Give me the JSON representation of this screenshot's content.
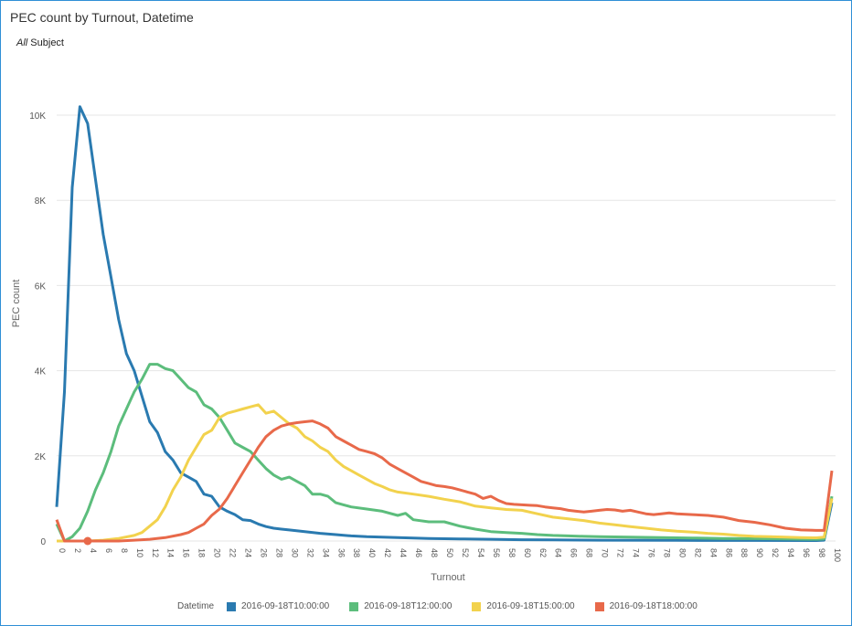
{
  "header": {
    "title": "PEC count by Turnout, Datetime",
    "subject_all": "All",
    "subject_label": "Subject"
  },
  "chart_data": {
    "type": "line",
    "xlabel": "Turnout",
    "ylabel": "PEC count",
    "xlim": [
      0,
      100
    ],
    "ylim": [
      0,
      10000
    ],
    "x_ticks": [
      0,
      2,
      4,
      6,
      8,
      10,
      12,
      14,
      16,
      18,
      20,
      22,
      24,
      26,
      28,
      30,
      32,
      34,
      36,
      38,
      40,
      42,
      44,
      46,
      48,
      50,
      52,
      54,
      56,
      58,
      60,
      62,
      64,
      66,
      68,
      70,
      72,
      74,
      76,
      78,
      80,
      82,
      84,
      86,
      88,
      90,
      92,
      94,
      96,
      98,
      100
    ],
    "y_ticks": [
      0,
      2000,
      4000,
      6000,
      8000,
      10000
    ],
    "y_tick_labels": [
      "0",
      "2K",
      "4K",
      "6K",
      "8K",
      "10K"
    ],
    "grid": "horizontal",
    "legend_title": "Datetime",
    "legend_position": "bottom",
    "series": [
      {
        "name": "2016-09-18T10:00:00",
        "color": "#2a7ab0",
        "points": [
          [
            0,
            800
          ],
          [
            1,
            3500
          ],
          [
            2,
            8300
          ],
          [
            3,
            10200
          ],
          [
            4,
            9800
          ],
          [
            5,
            8500
          ],
          [
            6,
            7200
          ],
          [
            7,
            6200
          ],
          [
            8,
            5200
          ],
          [
            9,
            4400
          ],
          [
            10,
            4000
          ],
          [
            11,
            3400
          ],
          [
            12,
            2800
          ],
          [
            13,
            2550
          ],
          [
            14,
            2100
          ],
          [
            15,
            1900
          ],
          [
            16,
            1600
          ],
          [
            17,
            1500
          ],
          [
            18,
            1400
          ],
          [
            19,
            1100
          ],
          [
            20,
            1050
          ],
          [
            21,
            800
          ],
          [
            22,
            700
          ],
          [
            23,
            620
          ],
          [
            24,
            500
          ],
          [
            25,
            480
          ],
          [
            26,
            400
          ],
          [
            27,
            340
          ],
          [
            28,
            300
          ],
          [
            29,
            280
          ],
          [
            30,
            260
          ],
          [
            32,
            220
          ],
          [
            34,
            180
          ],
          [
            36,
            150
          ],
          [
            38,
            120
          ],
          [
            40,
            100
          ],
          [
            44,
            80
          ],
          [
            48,
            60
          ],
          [
            52,
            50
          ],
          [
            56,
            40
          ],
          [
            60,
            30
          ],
          [
            64,
            25
          ],
          [
            70,
            20
          ],
          [
            80,
            15
          ],
          [
            90,
            12
          ],
          [
            98,
            10
          ],
          [
            99,
            20
          ],
          [
            100,
            900
          ]
        ]
      },
      {
        "name": "2016-09-18T12:00:00",
        "color": "#5cbd7c",
        "points": [
          [
            0,
            400
          ],
          [
            1,
            0
          ],
          [
            2,
            100
          ],
          [
            3,
            300
          ],
          [
            4,
            700
          ],
          [
            5,
            1200
          ],
          [
            6,
            1600
          ],
          [
            7,
            2100
          ],
          [
            8,
            2700
          ],
          [
            9,
            3100
          ],
          [
            10,
            3500
          ],
          [
            11,
            3800
          ],
          [
            12,
            4150
          ],
          [
            13,
            4150
          ],
          [
            14,
            4050
          ],
          [
            15,
            4000
          ],
          [
            16,
            3800
          ],
          [
            17,
            3600
          ],
          [
            18,
            3500
          ],
          [
            19,
            3200
          ],
          [
            20,
            3100
          ],
          [
            21,
            2900
          ],
          [
            22,
            2600
          ],
          [
            23,
            2300
          ],
          [
            24,
            2200
          ],
          [
            25,
            2100
          ],
          [
            26,
            1900
          ],
          [
            27,
            1700
          ],
          [
            28,
            1550
          ],
          [
            29,
            1450
          ],
          [
            30,
            1500
          ],
          [
            31,
            1400
          ],
          [
            32,
            1300
          ],
          [
            33,
            1100
          ],
          [
            34,
            1100
          ],
          [
            35,
            1050
          ],
          [
            36,
            900
          ],
          [
            37,
            850
          ],
          [
            38,
            800
          ],
          [
            40,
            750
          ],
          [
            42,
            700
          ],
          [
            44,
            600
          ],
          [
            45,
            650
          ],
          [
            46,
            500
          ],
          [
            48,
            450
          ],
          [
            50,
            450
          ],
          [
            52,
            350
          ],
          [
            54,
            280
          ],
          [
            56,
            220
          ],
          [
            58,
            200
          ],
          [
            60,
            180
          ],
          [
            62,
            150
          ],
          [
            64,
            130
          ],
          [
            66,
            120
          ],
          [
            68,
            110
          ],
          [
            70,
            100
          ],
          [
            74,
            90
          ],
          [
            78,
            80
          ],
          [
            82,
            70
          ],
          [
            86,
            60
          ],
          [
            90,
            55
          ],
          [
            94,
            50
          ],
          [
            98,
            40
          ],
          [
            99,
            50
          ],
          [
            100,
            1050
          ]
        ]
      },
      {
        "name": "2016-09-18T15:00:00",
        "color": "#f2d24d",
        "points": [
          [
            0,
            0
          ],
          [
            4,
            0
          ],
          [
            6,
            20
          ],
          [
            8,
            60
          ],
          [
            10,
            130
          ],
          [
            11,
            200
          ],
          [
            12,
            350
          ],
          [
            13,
            500
          ],
          [
            14,
            800
          ],
          [
            15,
            1200
          ],
          [
            16,
            1500
          ],
          [
            17,
            1900
          ],
          [
            18,
            2200
          ],
          [
            19,
            2500
          ],
          [
            20,
            2600
          ],
          [
            21,
            2900
          ],
          [
            22,
            3000
          ],
          [
            23,
            3050
          ],
          [
            24,
            3100
          ],
          [
            25,
            3150
          ],
          [
            26,
            3200
          ],
          [
            27,
            3000
          ],
          [
            28,
            3050
          ],
          [
            29,
            2900
          ],
          [
            30,
            2750
          ],
          [
            31,
            2650
          ],
          [
            32,
            2450
          ],
          [
            33,
            2350
          ],
          [
            34,
            2200
          ],
          [
            35,
            2100
          ],
          [
            36,
            1900
          ],
          [
            37,
            1750
          ],
          [
            38,
            1650
          ],
          [
            39,
            1550
          ],
          [
            40,
            1450
          ],
          [
            41,
            1350
          ],
          [
            42,
            1280
          ],
          [
            43,
            1200
          ],
          [
            44,
            1150
          ],
          [
            46,
            1100
          ],
          [
            48,
            1050
          ],
          [
            50,
            980
          ],
          [
            52,
            920
          ],
          [
            54,
            820
          ],
          [
            56,
            780
          ],
          [
            58,
            740
          ],
          [
            60,
            720
          ],
          [
            62,
            640
          ],
          [
            64,
            560
          ],
          [
            66,
            520
          ],
          [
            68,
            480
          ],
          [
            70,
            420
          ],
          [
            72,
            380
          ],
          [
            74,
            340
          ],
          [
            76,
            300
          ],
          [
            78,
            260
          ],
          [
            80,
            230
          ],
          [
            82,
            210
          ],
          [
            84,
            180
          ],
          [
            86,
            160
          ],
          [
            88,
            130
          ],
          [
            90,
            110
          ],
          [
            92,
            100
          ],
          [
            94,
            90
          ],
          [
            96,
            80
          ],
          [
            98,
            75
          ],
          [
            99,
            90
          ],
          [
            100,
            1000
          ]
        ]
      },
      {
        "name": "2016-09-18T18:00:00",
        "color": "#e8694a",
        "points": [
          [
            0,
            500
          ],
          [
            1,
            0
          ],
          [
            4,
            0
          ],
          [
            8,
            0
          ],
          [
            10,
            20
          ],
          [
            12,
            40
          ],
          [
            14,
            80
          ],
          [
            16,
            150
          ],
          [
            17,
            200
          ],
          [
            18,
            300
          ],
          [
            19,
            400
          ],
          [
            20,
            600
          ],
          [
            21,
            750
          ],
          [
            22,
            1000
          ],
          [
            23,
            1300
          ],
          [
            24,
            1600
          ],
          [
            25,
            1900
          ],
          [
            26,
            2200
          ],
          [
            27,
            2450
          ],
          [
            28,
            2600
          ],
          [
            29,
            2700
          ],
          [
            30,
            2750
          ],
          [
            31,
            2780
          ],
          [
            32,
            2800
          ],
          [
            33,
            2820
          ],
          [
            34,
            2750
          ],
          [
            35,
            2650
          ],
          [
            36,
            2450
          ],
          [
            37,
            2350
          ],
          [
            38,
            2250
          ],
          [
            39,
            2150
          ],
          [
            40,
            2100
          ],
          [
            41,
            2050
          ],
          [
            42,
            1950
          ],
          [
            43,
            1800
          ],
          [
            44,
            1700
          ],
          [
            45,
            1600
          ],
          [
            46,
            1500
          ],
          [
            47,
            1400
          ],
          [
            48,
            1350
          ],
          [
            49,
            1300
          ],
          [
            50,
            1280
          ],
          [
            51,
            1250
          ],
          [
            52,
            1200
          ],
          [
            53,
            1150
          ],
          [
            54,
            1100
          ],
          [
            55,
            1000
          ],
          [
            56,
            1050
          ],
          [
            57,
            950
          ],
          [
            58,
            880
          ],
          [
            59,
            860
          ],
          [
            60,
            850
          ],
          [
            61,
            840
          ],
          [
            62,
            830
          ],
          [
            63,
            800
          ],
          [
            64,
            780
          ],
          [
            65,
            760
          ],
          [
            66,
            720
          ],
          [
            67,
            700
          ],
          [
            68,
            680
          ],
          [
            69,
            700
          ],
          [
            70,
            720
          ],
          [
            71,
            740
          ],
          [
            72,
            730
          ],
          [
            73,
            700
          ],
          [
            74,
            720
          ],
          [
            75,
            680
          ],
          [
            76,
            640
          ],
          [
            77,
            620
          ],
          [
            78,
            640
          ],
          [
            79,
            660
          ],
          [
            80,
            640
          ],
          [
            82,
            620
          ],
          [
            84,
            600
          ],
          [
            86,
            560
          ],
          [
            88,
            480
          ],
          [
            90,
            440
          ],
          [
            92,
            380
          ],
          [
            94,
            300
          ],
          [
            96,
            260
          ],
          [
            98,
            250
          ],
          [
            99,
            250
          ],
          [
            100,
            1650
          ]
        ]
      }
    ]
  }
}
